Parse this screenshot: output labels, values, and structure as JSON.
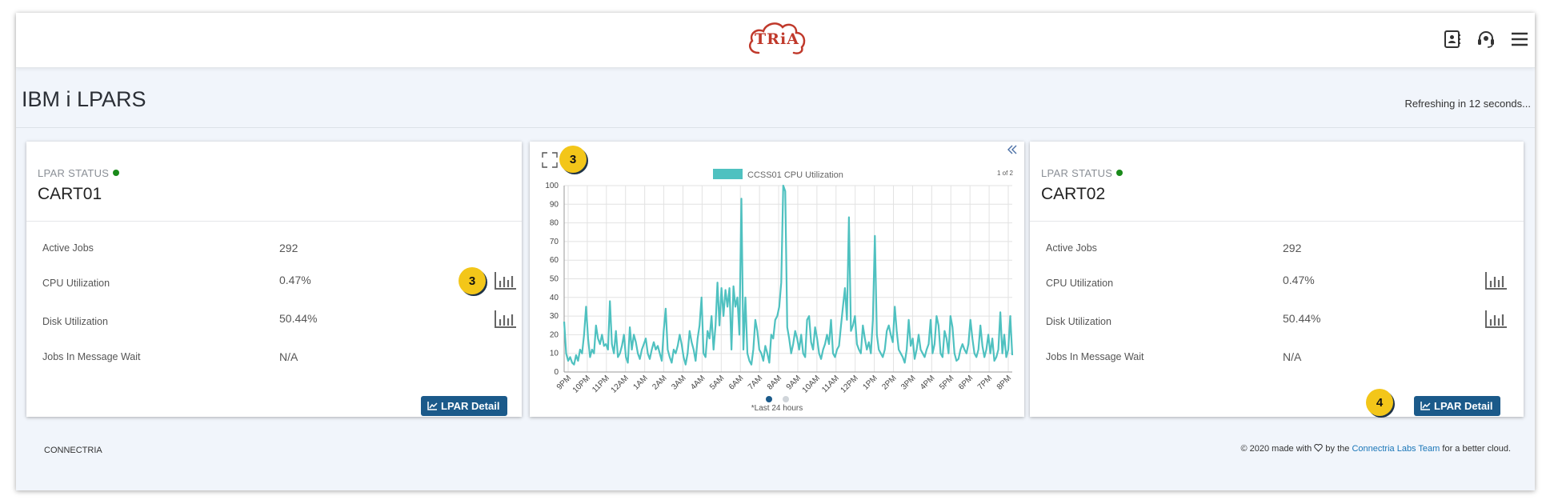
{
  "header": {
    "logo_text": "TRiA",
    "icons": [
      "contacts-icon",
      "headset-icon",
      "hamburger-menu-icon"
    ]
  },
  "page": {
    "title": "IBM i LPARS",
    "refresh_text": "Refreshing in 12 seconds..."
  },
  "cards": [
    {
      "status_label": "LPAR STATUS",
      "status_color": "#1a8a1a",
      "name": "CART01",
      "rows": [
        {
          "label": "Active Jobs",
          "value": "292"
        },
        {
          "label": "CPU Utilization",
          "value": "0.47%"
        },
        {
          "label": "Disk Utilization",
          "value": "50.44%"
        },
        {
          "label": "Jobs In Message Wait",
          "value": "N/A"
        }
      ],
      "detail_button": "LPAR Detail",
      "badge": "3"
    },
    {
      "status_label": "LPAR STATUS",
      "status_color": "#1a8a1a",
      "name": "CART02",
      "rows": [
        {
          "label": "Active Jobs",
          "value": "292"
        },
        {
          "label": "CPU Utilization",
          "value": "0.47%"
        },
        {
          "label": "Disk Utilization",
          "value": "50.44%"
        },
        {
          "label": "Jobs In Message Wait",
          "value": "N/A"
        }
      ],
      "detail_button": "LPAR Detail",
      "badge": "4"
    }
  ],
  "chart_panel": {
    "badge": "3",
    "pager": "1 of 2",
    "note": "*Last 24 hours",
    "dots": [
      "active",
      "inactive"
    ]
  },
  "chart_data": {
    "type": "line",
    "legend": "CCSS01 CPU Utilization",
    "color": "#4fc1c0",
    "ylim": [
      0,
      100
    ],
    "yticks": [
      0,
      10,
      20,
      30,
      40,
      50,
      60,
      70,
      80,
      90,
      100
    ],
    "xticks": [
      "9PM",
      "10PM",
      "11PM",
      "12AM",
      "1AM",
      "2AM",
      "3AM",
      "4AM",
      "5AM",
      "6AM",
      "7AM",
      "8AM",
      "9AM",
      "10AM",
      "11AM",
      "12PM",
      "1PM",
      "2PM",
      "3PM",
      "4PM",
      "5PM",
      "6PM",
      "7PM",
      "8PM"
    ],
    "values": [
      27,
      10,
      6,
      8,
      5,
      4,
      9,
      6,
      12,
      10,
      20,
      35,
      18,
      8,
      12,
      10,
      25,
      18,
      15,
      20,
      14,
      15,
      12,
      38,
      15,
      10,
      22,
      8,
      10,
      14,
      20,
      8,
      5,
      24,
      12,
      20,
      16,
      10,
      7,
      12,
      15,
      18,
      10,
      7,
      12,
      16,
      12,
      14,
      10,
      6,
      22,
      34,
      12,
      8,
      5,
      12,
      10,
      14,
      20,
      15,
      8,
      4,
      10,
      22,
      16,
      12,
      6,
      18,
      25,
      40,
      10,
      8,
      22,
      18,
      30,
      12,
      25,
      48,
      25,
      45,
      30,
      44,
      35,
      45,
      12,
      46,
      35,
      40,
      20,
      93,
      12,
      40,
      10,
      6,
      4,
      12,
      28,
      22,
      12,
      10,
      6,
      14,
      10,
      5,
      20,
      18,
      28,
      30,
      35,
      48,
      100,
      97,
      24,
      18,
      10,
      15,
      22,
      18,
      12,
      20,
      10,
      8,
      28,
      30,
      16,
      12,
      24,
      18,
      10,
      7,
      12,
      15,
      20,
      15,
      28,
      10,
      8,
      12,
      14,
      25,
      35,
      45,
      28,
      83,
      22,
      25,
      30,
      15,
      12,
      10,
      25,
      18,
      12,
      16,
      10,
      28,
      73,
      20,
      12,
      10,
      8,
      12,
      22,
      25,
      20,
      16,
      35,
      22,
      12,
      10,
      8,
      5,
      12,
      28,
      14,
      18,
      7,
      12,
      20,
      12,
      10,
      8,
      12,
      15,
      28,
      10,
      15,
      30,
      25,
      10,
      8,
      22,
      18,
      10,
      30,
      24,
      10,
      6,
      7,
      12,
      15,
      12,
      10,
      15,
      28,
      18,
      10,
      8,
      12,
      25,
      14,
      8,
      12,
      20,
      10,
      18,
      6,
      8,
      12,
      32,
      10,
      20,
      8,
      12,
      30,
      9
    ]
  },
  "footer": {
    "left": "CONNECTRIA",
    "right_prefix": "© 2020 made with",
    "right_mid": "by the",
    "right_link": "Connectria Labs Team",
    "right_suffix": "for a better cloud."
  }
}
